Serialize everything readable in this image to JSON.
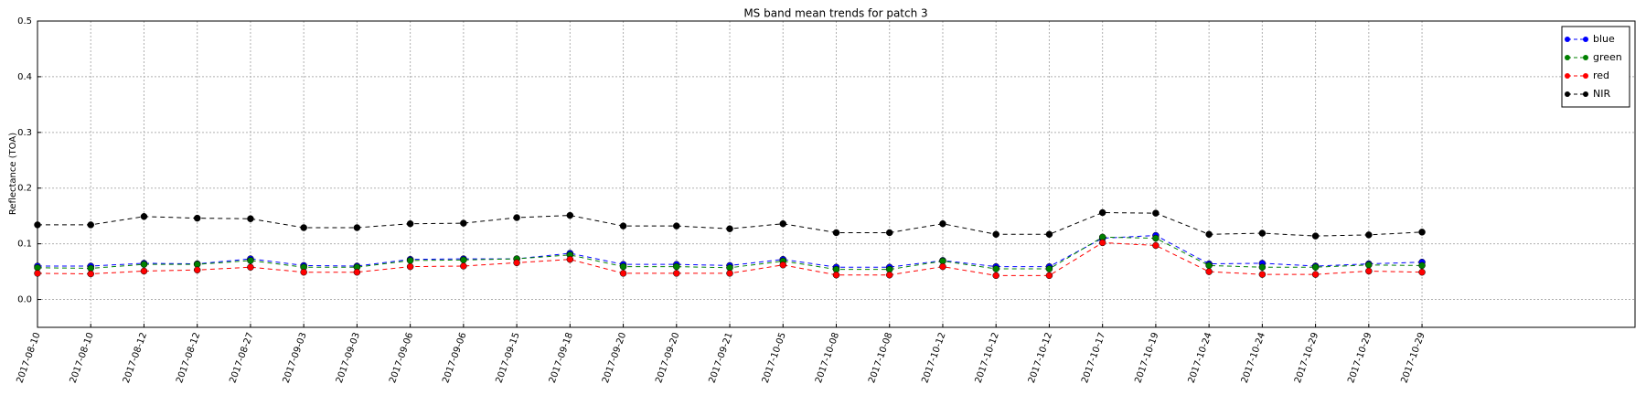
{
  "chart_data": {
    "type": "line",
    "title": "MS band mean trends for patch 3",
    "ylabel": "Reflectance (TOA)",
    "categories": [
      "2017-08-10",
      "2017-08-10",
      "2017-08-12",
      "2017-08-12",
      "2017-08-27",
      "2017-09-03",
      "2017-09-03",
      "2017-09-06",
      "2017-09-06",
      "2017-09-15",
      "2017-09-18",
      "2017-09-20",
      "2017-09-20",
      "2017-09-21",
      "2017-10-05",
      "2017-10-08",
      "2017-10-08",
      "2017-10-12",
      "2017-10-12",
      "2017-10-12",
      "2017-10-17",
      "2017-10-19",
      "2017-10-24",
      "2017-10-24",
      "2017-10-29",
      "2017-10-29",
      "2017-10-29"
    ],
    "xlim": [
      0,
      30
    ],
    "series": [
      {
        "name": "blue",
        "color": "#0000ff",
        "values": [
          0.06,
          0.06,
          0.065,
          0.064,
          0.073,
          0.061,
          0.06,
          0.072,
          0.073,
          0.073,
          0.083,
          0.063,
          0.063,
          0.061,
          0.072,
          0.058,
          0.058,
          0.07,
          0.059,
          0.059,
          0.11,
          0.115,
          0.064,
          0.065,
          0.06,
          0.064,
          0.067
        ]
      },
      {
        "name": "green",
        "color": "#008000",
        "values": [
          0.057,
          0.056,
          0.063,
          0.063,
          0.07,
          0.058,
          0.058,
          0.07,
          0.071,
          0.073,
          0.08,
          0.059,
          0.059,
          0.057,
          0.069,
          0.054,
          0.054,
          0.069,
          0.055,
          0.055,
          0.112,
          0.11,
          0.061,
          0.058,
          0.058,
          0.062,
          0.061
        ]
      },
      {
        "name": "red",
        "color": "#ff0000",
        "values": [
          0.047,
          0.046,
          0.051,
          0.053,
          0.058,
          0.049,
          0.049,
          0.059,
          0.06,
          0.066,
          0.072,
          0.047,
          0.047,
          0.047,
          0.062,
          0.044,
          0.044,
          0.059,
          0.043,
          0.043,
          0.102,
          0.097,
          0.05,
          0.045,
          0.045,
          0.051,
          0.049
        ]
      },
      {
        "name": "NIR",
        "color": "#000000",
        "values": [
          0.134,
          0.134,
          0.149,
          0.146,
          0.145,
          0.129,
          0.129,
          0.136,
          0.137,
          0.147,
          0.151,
          0.132,
          0.132,
          0.127,
          0.136,
          0.12,
          0.12,
          0.136,
          0.117,
          0.117,
          0.156,
          0.155,
          0.117,
          0.119,
          0.114,
          0.116,
          0.121
        ]
      }
    ],
    "ylim": [
      -0.05,
      0.5
    ],
    "yticks": [
      {
        "value": 0,
        "label": "0.0"
      },
      0.1,
      0.2,
      0.3,
      0.4,
      0.5
    ],
    "grid": true,
    "legend": "upper right"
  }
}
